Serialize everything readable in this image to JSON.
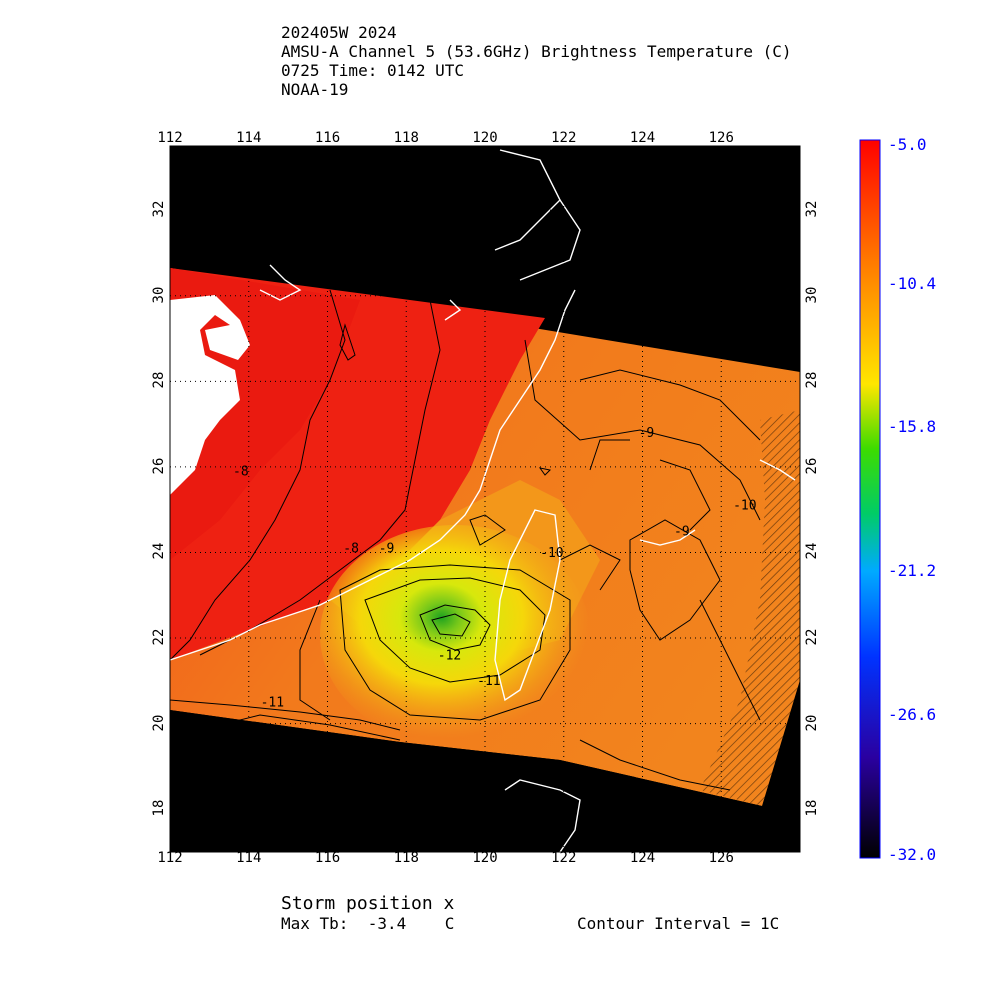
{
  "header": {
    "line1": "202405W 2024",
    "line2": "AMSU-A Channel 5 (53.6GHz) Brightness Temperature (C)",
    "line3": "0725 Time: 0142 UTC",
    "line4": "NOAA-19"
  },
  "map": {
    "lon_range": [
      112,
      128
    ],
    "lat_range": [
      17,
      33.5
    ],
    "lon_ticks": [
      "112",
      "114",
      "116",
      "118",
      "120",
      "122",
      "124",
      "126"
    ],
    "lat_ticks": [
      "18",
      "20",
      "22",
      "24",
      "26",
      "28",
      "30",
      "32"
    ],
    "contour_labels": [
      {
        "text": "-9",
        "lon": 123.9,
        "lat": 26.7
      },
      {
        "text": "-8",
        "lon": 116.4,
        "lat": 24.0
      },
      {
        "text": "-9",
        "lon": 117.3,
        "lat": 24.0
      },
      {
        "text": "-8",
        "lon": 113.6,
        "lat": 25.8
      },
      {
        "text": "-9",
        "lon": 124.8,
        "lat": 24.4
      },
      {
        "text": "-10",
        "lon": 126.3,
        "lat": 25.0
      },
      {
        "text": "-12",
        "lon": 118.8,
        "lat": 21.5
      },
      {
        "text": "-11",
        "lon": 119.8,
        "lat": 20.9
      },
      {
        "text": "-11",
        "lon": 114.3,
        "lat": 20.4
      },
      {
        "text": "-10",
        "lon": 121.4,
        "lat": 23.9
      }
    ],
    "colors": {
      "background": "#000000",
      "no_data": "#ffffff",
      "coast": "#ffffff",
      "contour": "#000000"
    }
  },
  "colorbar": {
    "labels": [
      "-5.0",
      "-10.4",
      "-15.8",
      "-21.2",
      "-26.6",
      "-32.0"
    ],
    "min": -32.0,
    "max": -5.0
  },
  "footer": {
    "storm_position": "Storm position x",
    "max_tb": "Max Tb:  -3.4    C",
    "contour_interval": "Contour Interval = 1C"
  }
}
